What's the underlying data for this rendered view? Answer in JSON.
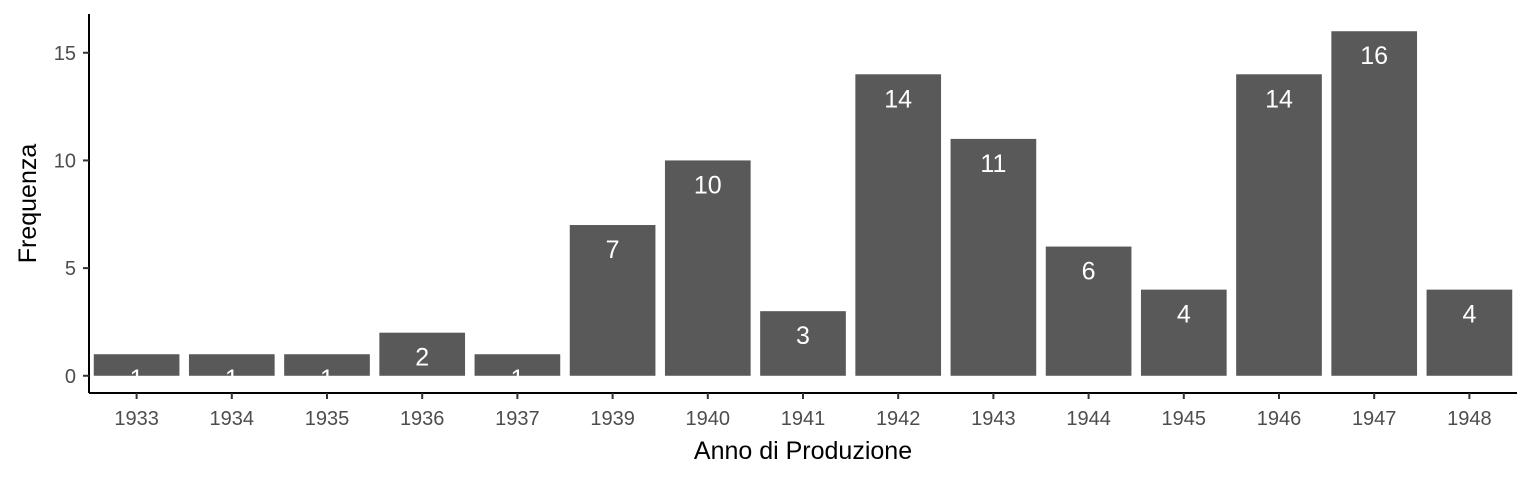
{
  "chart_data": {
    "type": "bar",
    "title": "",
    "xlabel": "Anno di Produzione",
    "ylabel": "Frequenza",
    "categories": [
      "1933",
      "1934",
      "1935",
      "1936",
      "1937",
      "1939",
      "1940",
      "1941",
      "1942",
      "1943",
      "1944",
      "1945",
      "1946",
      "1947",
      "1948"
    ],
    "values": [
      1,
      1,
      1,
      2,
      1,
      7,
      10,
      3,
      14,
      11,
      6,
      4,
      14,
      16,
      4
    ],
    "ylim": [
      -0.8,
      16.8
    ],
    "yticks": [
      0,
      5,
      10,
      15
    ],
    "bar_color": "#595959",
    "label_color": "#ffffff",
    "grid": false,
    "legend": "none"
  }
}
